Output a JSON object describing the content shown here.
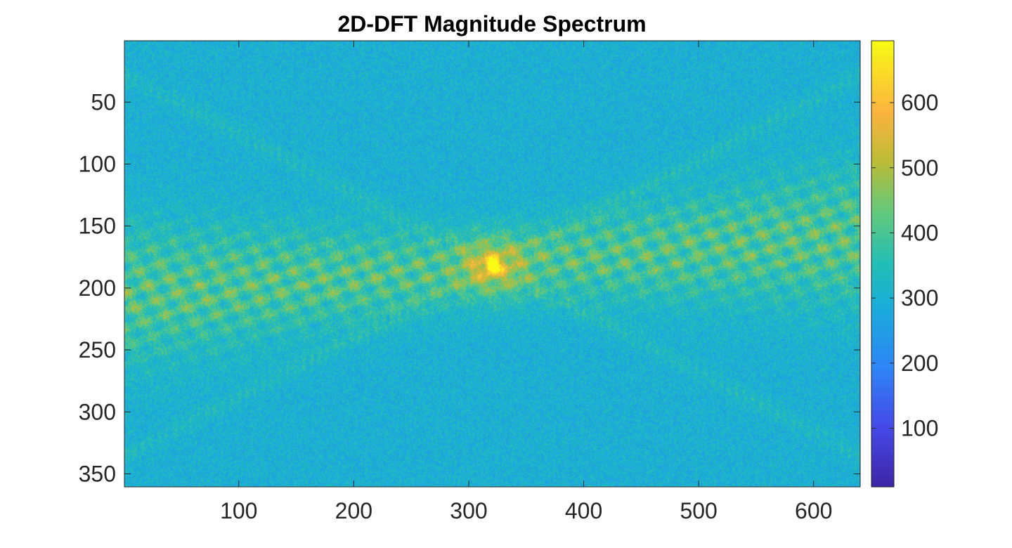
{
  "chart_data": {
    "type": "heatmap",
    "title": "2D-DFT Magnitude Spectrum",
    "xlabel": "",
    "ylabel": "",
    "xlim": [
      0.5,
      640.5
    ],
    "ylim": [
      0.5,
      360.5
    ],
    "y_reversed": true,
    "x_ticks": [
      100,
      200,
      300,
      400,
      500,
      600
    ],
    "y_ticks": [
      50,
      100,
      150,
      200,
      250,
      300,
      350
    ],
    "grid": false,
    "colormap": "parula",
    "colorbar": {
      "location": "right",
      "limits": [
        10,
        695
      ],
      "ticks": [
        100,
        200,
        300,
        400,
        500,
        600
      ]
    },
    "peak": {
      "x": 320,
      "y": 181,
      "value": 695
    },
    "background_level": 300,
    "spectral_band_level": 450,
    "colors": {
      "low": "#3e26a8",
      "mid_low": "#2e87f7",
      "mid": "#1ab8c4",
      "mid_high": "#9bc938",
      "high": "#fbb43f",
      "top": "#f9fb15"
    }
  }
}
